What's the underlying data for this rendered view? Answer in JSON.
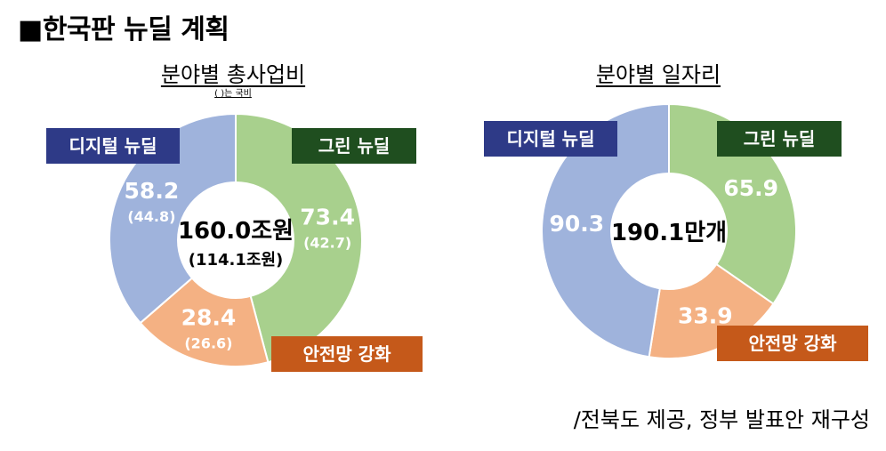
{
  "page_title": "■한국판 뉴딜 계획",
  "source": "/전북도 제공, 정부 발표안 재구성",
  "colors": {
    "digital": "#9fb3dc",
    "green": "#a8d08d",
    "safety": "#f4b183",
    "digital_tag": "#2e3a87",
    "green_tag": "#1f4e1f",
    "safety_tag": "#c5591a"
  },
  "chart_data": [
    {
      "type": "pie",
      "title": "분야별 총사업비",
      "subtitle": "( )는 국비",
      "center_label": "160.0조원",
      "center_sublabel": "(114.1조원)",
      "categories": [
        "그린 뉴딜",
        "안전망 강화",
        "디지털 뉴딜"
      ],
      "values": [
        73.4,
        28.4,
        58.2
      ],
      "sub_values": [
        42.7,
        26.6,
        44.8
      ],
      "value_labels": [
        "73.4",
        "28.4",
        "58.2"
      ],
      "sub_labels": [
        "(42.7)",
        "(26.6)",
        "(44.8)"
      ]
    },
    {
      "type": "pie",
      "title": "분야별 일자리",
      "center_label": "190.1만개",
      "categories": [
        "그린 뉴딜",
        "안전망 강화",
        "디지털 뉴딜"
      ],
      "values": [
        65.9,
        33.9,
        90.3
      ],
      "value_labels": [
        "65.9",
        "33.9",
        "90.3"
      ]
    }
  ]
}
